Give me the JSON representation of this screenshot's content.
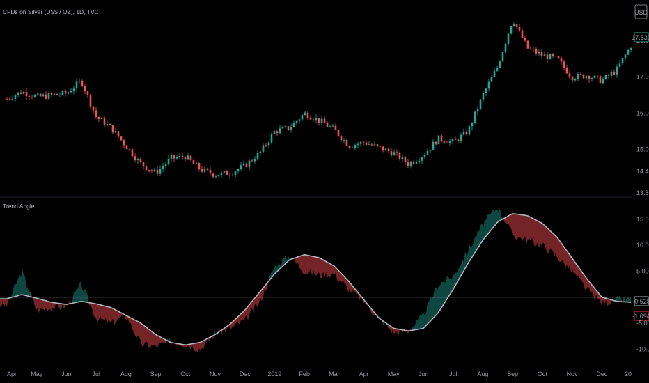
{
  "chart_data": [
    {
      "type": "candlestick",
      "title": "CFDs on Silver (US$ / OZ), 1D, TVC",
      "currency_badge": "USD",
      "last_price_label": "17.830",
      "y_ticks": [
        "18.000",
        "17.000",
        "16.000",
        "15.000",
        "14.400",
        "13.800"
      ],
      "ylim": [
        13.8,
        18.4
      ],
      "x_ticks": [
        "Apr",
        "May",
        "Jun",
        "Jul",
        "Aug",
        "Sep",
        "Oct",
        "Nov",
        "Dec",
        "2019",
        "Feb",
        "Mar",
        "Apr",
        "May",
        "Jun",
        "Jul",
        "Aug",
        "Sep",
        "Oct",
        "Nov",
        "Dec",
        "20"
      ],
      "series": [
        {
          "name": "close",
          "x_months": [
            0,
            0.5,
            1,
            1.5,
            2,
            2.5,
            3,
            3.5,
            4,
            4.5,
            5,
            5.5,
            6,
            6.5,
            7,
            7.5,
            8,
            8.5,
            9,
            9.5,
            10,
            10.5,
            11,
            11.5,
            12,
            12.5,
            13,
            13.5,
            14,
            14.5,
            15,
            15.5,
            16,
            16.5,
            17,
            17.5,
            18,
            18.5,
            19,
            19.5,
            20,
            20.5,
            21,
            21.5
          ],
          "values": [
            16.4,
            16.6,
            16.45,
            16.5,
            16.55,
            16.9,
            15.9,
            15.6,
            15.1,
            14.6,
            14.35,
            14.75,
            14.8,
            14.45,
            14.3,
            14.35,
            14.55,
            14.9,
            15.5,
            15.6,
            16.0,
            15.8,
            15.55,
            15.1,
            15.2,
            15.05,
            14.9,
            14.6,
            14.85,
            15.3,
            15.2,
            15.5,
            16.5,
            17.3,
            18.6,
            17.8,
            17.6,
            17.5,
            17.0,
            17.05,
            16.9,
            17.2,
            17.9,
            18.0
          ]
        }
      ]
    },
    {
      "type": "area",
      "title": "Trend Angle",
      "y_ticks": [
        "15.000",
        "10.000",
        "5.000",
        "-5.000",
        "-10.000"
      ],
      "ylim": [
        -10.5,
        17
      ],
      "value_labels": [
        "-0.528",
        "-1.094"
      ],
      "zero_line": 0,
      "series": [
        {
          "name": "signal",
          "color": "#b2b5be",
          "x_months": [
            0,
            0.5,
            1,
            1.5,
            2,
            2.5,
            3,
            3.5,
            4,
            4.5,
            5,
            5.5,
            6,
            6.5,
            7,
            7.5,
            8,
            8.5,
            9,
            9.5,
            10,
            10.5,
            11,
            11.5,
            12,
            12.5,
            13,
            13.5,
            14,
            14.5,
            15,
            15.5,
            16,
            16.5,
            17,
            17.5,
            18,
            18.5,
            19,
            19.5,
            20,
            20.5,
            21,
            21.5
          ],
          "values": [
            -0.3,
            0.5,
            -0.2,
            -1,
            -1.4,
            -0.8,
            -1.3,
            -2,
            -3.5,
            -5,
            -7.2,
            -8.7,
            -9.2,
            -8.7,
            -7.2,
            -5.2,
            -2.5,
            1,
            4.5,
            7.2,
            8.2,
            7.6,
            6,
            3,
            -0.5,
            -4,
            -6,
            -6.5,
            -6,
            -3,
            1.5,
            6.5,
            11,
            14.5,
            16.1,
            15.7,
            14.2,
            11.5,
            7.5,
            3.5,
            0,
            -0.8,
            -1,
            -1.1
          ]
        },
        {
          "name": "angle",
          "x_months": [
            0,
            0.5,
            1,
            1.5,
            2,
            2.5,
            3,
            3.5,
            4,
            4.5,
            5,
            5.5,
            6,
            6.5,
            7,
            7.5,
            8,
            8.5,
            9,
            9.5,
            10,
            10.5,
            11,
            11.5,
            12,
            12.5,
            13,
            13.5,
            14,
            14.5,
            15,
            15.5,
            16,
            16.5,
            17,
            17.5,
            18,
            18.5,
            19,
            19.5,
            20,
            20.5,
            21,
            21.5
          ],
          "values": [
            -1.5,
            5,
            -2.5,
            -2,
            -1.8,
            2.5,
            -4,
            -5,
            -3.5,
            -9,
            -9.5,
            -8.5,
            -9,
            -10,
            -7,
            -6,
            -4.5,
            -1,
            6,
            8,
            5,
            4.3,
            4.5,
            1.5,
            -0.8,
            -4,
            -6.8,
            -6.5,
            -3.5,
            2.5,
            4,
            9,
            14,
            17.5,
            12,
            11,
            10,
            7.8,
            5,
            1.5,
            -1.2,
            -0.5,
            -0.4,
            -0.6
          ]
        }
      ]
    }
  ]
}
